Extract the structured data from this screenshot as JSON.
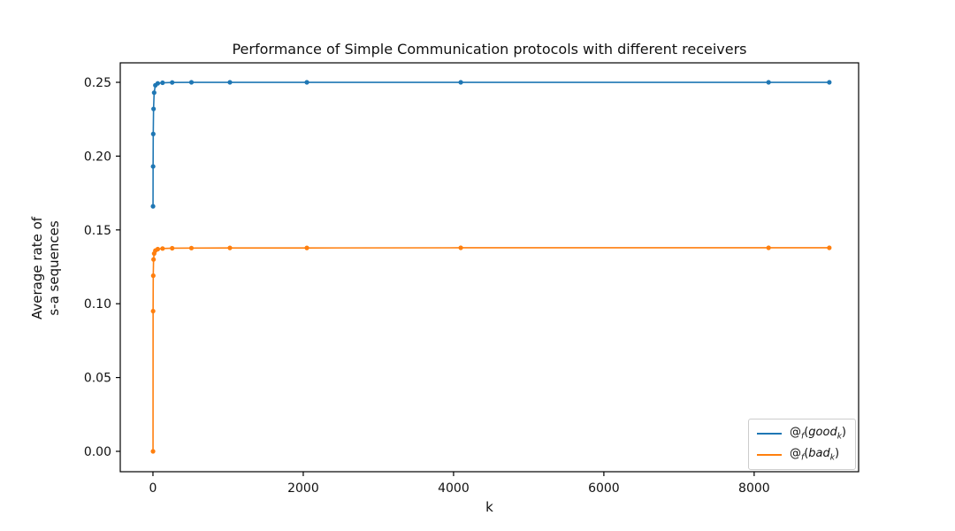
{
  "chart_data": {
    "type": "line",
    "title": "Performance of Simple Communication protocols with different receivers",
    "xlabel": "k",
    "ylabel_lines": [
      "Average rate of",
      "s-a sequences"
    ],
    "grid": false,
    "legend_position": "lower right",
    "marker": "point",
    "xlim": [
      -435,
      9390
    ],
    "ylim": [
      -0.0138,
      0.2632
    ],
    "x_ticks": [
      {
        "v": 0,
        "label": "0"
      },
      {
        "v": 2000,
        "label": "2000"
      },
      {
        "v": 4000,
        "label": "4000"
      },
      {
        "v": 6000,
        "label": "6000"
      },
      {
        "v": 8000,
        "label": "8000"
      }
    ],
    "y_ticks": [
      {
        "v": 0.0,
        "label": "0.00"
      },
      {
        "v": 0.05,
        "label": "0.05"
      },
      {
        "v": 0.1,
        "label": "0.10"
      },
      {
        "v": 0.15,
        "label": "0.15"
      },
      {
        "v": 0.2,
        "label": "0.20"
      },
      {
        "v": 0.25,
        "label": "0.25"
      }
    ],
    "x": [
      1,
      2,
      4,
      8,
      16,
      32,
      64,
      128,
      256,
      512,
      1024,
      2048,
      4096,
      8192,
      9000
    ],
    "series": [
      {
        "name": "@_f(good_k)",
        "color": "#1f77b4",
        "values": [
          0.166,
          0.193,
          0.215,
          0.232,
          0.243,
          0.248,
          0.2493,
          0.2497,
          0.2499,
          0.25,
          0.25,
          0.25,
          0.25,
          0.25,
          0.25
        ]
      },
      {
        "name": "@_f(bad_k)",
        "color": "#ff7f0e",
        "values": [
          0.0,
          0.095,
          0.119,
          0.13,
          0.134,
          0.136,
          0.137,
          0.1374,
          0.1376,
          0.1377,
          0.1378,
          0.1378,
          0.1379,
          0.1379,
          0.1379
        ]
      }
    ]
  },
  "legend": {
    "items": [
      {
        "at": "@",
        "sub": "f",
        "open": "(",
        "word": "good",
        "word_sub": "k",
        "close": ")"
      },
      {
        "at": "@",
        "sub": "f",
        "open": "(",
        "word": "bad",
        "word_sub": "k",
        "close": ")"
      }
    ]
  }
}
